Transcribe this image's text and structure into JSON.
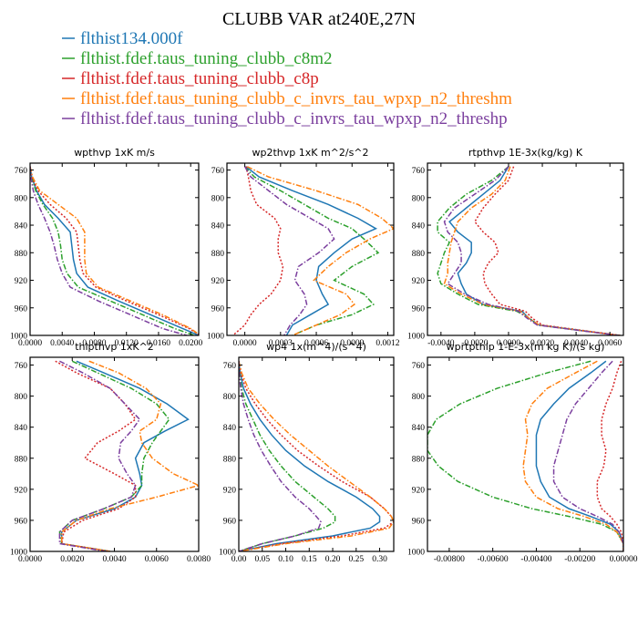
{
  "figure": {
    "title": "CLUBB VAR at240E,27N"
  },
  "legend": [
    {
      "name": "flthist134.000f",
      "color": "#1f77b4",
      "dash": "solid"
    },
    {
      "name": "flthist.fdef.taus_tuning_clubb_c8m2",
      "color": "#2ca02c",
      "dash": "dashdot"
    },
    {
      "name": "flthist.fdef.taus_tuning_clubb_c8p",
      "color": "#d62728",
      "dash": "dot"
    },
    {
      "name": "flthist.fdef.taus_tuning_clubb_c_invrs_tau_wpxp_n2_threshm",
      "color": "#ff7f0e",
      "dash": "dashdot"
    },
    {
      "name": "flthist.fdef.taus_tuning_clubb_c_invrs_tau_wpxp_n2_threshp",
      "color": "#7b3f9e",
      "dash": "dashdot"
    }
  ],
  "colors": {
    "flthist134.000f": "#1f77b4",
    "c8m2": "#2ca02c",
    "c8p": "#d62728",
    "threshm": "#ff7f0e",
    "threshp": "#7b3f9e"
  },
  "chart_data": [
    {
      "type": "line",
      "title": "wpthvp  1xK m/s",
      "xlim": [
        0,
        0.021
      ],
      "ylim": [
        1000,
        750
      ],
      "xticks": [
        0,
        0.004,
        0.008,
        0.012,
        0.016,
        0.02
      ],
      "xticklabels": [
        "0.0000",
        "0.0040",
        "0.0080",
        "0.0120",
        "0.0160",
        "0.0200"
      ],
      "yticks": [
        760,
        800,
        840,
        880,
        920,
        960,
        1000
      ],
      "y": [
        755,
        770,
        790,
        810,
        830,
        850,
        870,
        890,
        910,
        930,
        950,
        970,
        990,
        1000
      ],
      "series": [
        {
          "name": "flthist134.000f",
          "values": [
            0.0,
            0.0002,
            0.0008,
            0.0018,
            0.0035,
            0.005,
            0.0052,
            0.0054,
            0.0058,
            0.0072,
            0.011,
            0.015,
            0.019,
            0.021
          ]
        },
        {
          "name": "flthist.fdef.taus_tuning_clubb_c8m2",
          "values": [
            0.0,
            0.0002,
            0.0007,
            0.0016,
            0.0028,
            0.0035,
            0.0038,
            0.004,
            0.0046,
            0.006,
            0.01,
            0.014,
            0.018,
            0.0205
          ]
        },
        {
          "name": "flthist.fdef.taus_tuning_clubb_c8p",
          "values": [
            0.0,
            0.0002,
            0.001,
            0.0025,
            0.0045,
            0.0058,
            0.006,
            0.0062,
            0.0066,
            0.0082,
            0.012,
            0.016,
            0.0198,
            0.0212
          ]
        },
        {
          "name": "flthist.fdef.taus_tuning_clubb_c_invrs_tau_wpxp_n2_threshm",
          "values": [
            0.0,
            0.0003,
            0.0012,
            0.0035,
            0.0058,
            0.0068,
            0.0068,
            0.0068,
            0.007,
            0.0085,
            0.0125,
            0.0165,
            0.02,
            0.0212
          ]
        },
        {
          "name": "flthist.fdef.taus_tuning_clubb_c_invrs_tau_wpxp_n2_threshp",
          "values": [
            0.0,
            0.0001,
            0.0004,
            0.001,
            0.0018,
            0.0025,
            0.003,
            0.0034,
            0.004,
            0.005,
            0.0085,
            0.0125,
            0.0165,
            0.0195
          ]
        }
      ]
    },
    {
      "type": "line",
      "title": "wp2thvp  1xK m^2/s^2",
      "xlim": [
        -0.00015,
        0.00125
      ],
      "ylim": [
        1000,
        750
      ],
      "xticks": [
        0,
        0.0003,
        0.0006,
        0.0009,
        0.0012
      ],
      "xticklabels": [
        "0.0000",
        "0.0003",
        "0.0006",
        "0.0009",
        "0.0012"
      ],
      "yticks": [
        760,
        800,
        840,
        880,
        920,
        960,
        1000
      ],
      "y": [
        755,
        770,
        790,
        810,
        830,
        845,
        860,
        880,
        900,
        920,
        940,
        955,
        970,
        985,
        1000
      ],
      "series": [
        {
          "name": "flthist134.000f",
          "values": [
            1e-05,
            0.00012,
            0.0004,
            0.0007,
            0.00095,
            0.0011,
            0.0009,
            0.00075,
            0.00062,
            0.0006,
            0.00065,
            0.0007,
            0.00055,
            0.0004,
            0.00035
          ]
        },
        {
          "name": "flthist.fdef.taus_tuning_clubb_c8m2",
          "values": [
            0.0,
            8e-05,
            0.0003,
            0.0005,
            0.0007,
            0.0009,
            0.001,
            0.00112,
            0.0009,
            0.00075,
            0.001,
            0.00108,
            0.0009,
            0.0006,
            0.0004
          ]
        },
        {
          "name": "flthist.fdef.taus_tuning_clubb_c8p",
          "values": [
            1e-05,
            3e-05,
            5e-05,
            0.0001,
            0.00025,
            0.0003,
            0.00028,
            0.00028,
            0.00032,
            0.0003,
            0.00022,
            0.00012,
            5e-05,
            0.0,
            -0.0001
          ]
        },
        {
          "name": "flthist.fdef.taus_tuning_clubb_c_invrs_tau_wpxp_n2_threshm",
          "values": [
            2e-05,
            0.0002,
            0.0006,
            0.00095,
            0.00115,
            0.00125,
            0.00105,
            0.00085,
            0.0007,
            0.00058,
            0.00085,
            0.00092,
            0.0008,
            0.0006,
            0.0004
          ]
        },
        {
          "name": "flthist.fdef.taus_tuning_clubb_c_invrs_tau_wpxp_n2_threshp",
          "values": [
            0.0,
            5e-05,
            0.0002,
            0.00035,
            0.00055,
            0.0007,
            0.00075,
            0.00062,
            0.00045,
            0.00042,
            0.0005,
            0.00052,
            0.00046,
            0.00038,
            0.00033
          ]
        }
      ]
    },
    {
      "type": "line",
      "title": "rtpthvp  1E-3x(kg/kg) K",
      "xlim": [
        -0.0048,
        0.0068
      ],
      "ylim": [
        1000,
        750
      ],
      "xticks": [
        -0.004,
        -0.002,
        0,
        0.002,
        0.004,
        0.006
      ],
      "xticklabels": [
        "-0.0040",
        "-0.0020",
        "0.0000",
        "0.0020",
        "0.0040",
        "0.0060"
      ],
      "yticks": [
        760,
        800,
        840,
        880,
        920,
        960,
        1000
      ],
      "y": [
        755,
        775,
        795,
        815,
        835,
        850,
        865,
        880,
        895,
        910,
        925,
        940,
        955,
        965,
        975,
        985,
        1000
      ],
      "series": [
        {
          "name": "flthist134.000f",
          "values": [
            0.0,
            -0.0005,
            -0.0015,
            -0.0025,
            -0.0035,
            -0.003,
            -0.0022,
            -0.0022,
            -0.0025,
            -0.003,
            -0.0028,
            -0.0025,
            -0.0015,
            0.0008,
            0.0012,
            0.0018,
            0.0065
          ]
        },
        {
          "name": "flthist.fdef.taus_tuning_clubb_c8m2",
          "values": [
            0.0,
            -0.001,
            -0.0025,
            -0.0035,
            -0.0042,
            -0.0042,
            -0.0035,
            -0.0038,
            -0.004,
            -0.0042,
            -0.004,
            -0.003,
            -0.0018,
            0.0005,
            0.0012,
            0.0018,
            0.0066
          ]
        },
        {
          "name": "flthist.fdef.taus_tuning_clubb_c8p",
          "values": [
            0.0003,
            0.0,
            -0.0008,
            -0.0015,
            -0.002,
            -0.0015,
            -0.0008,
            -0.0006,
            -0.0012,
            -0.0015,
            -0.0014,
            -0.001,
            -0.0005,
            0.001,
            0.0014,
            0.002,
            0.0066
          ]
        },
        {
          "name": "flthist.fdef.taus_tuning_clubb_c_invrs_tau_wpxp_n2_threshm",
          "values": [
            0.0001,
            -0.0002,
            -0.001,
            -0.0022,
            -0.003,
            -0.0032,
            -0.0034,
            -0.0035,
            -0.0036,
            -0.0036,
            -0.0038,
            -0.0028,
            -0.0015,
            0.0007,
            0.0012,
            0.0018,
            0.0065
          ]
        },
        {
          "name": "flthist.fdef.taus_tuning_clubb_c_invrs_tau_wpxp_n2_threshp",
          "values": [
            0.0,
            -0.0008,
            -0.002,
            -0.0032,
            -0.0038,
            -0.0036,
            -0.003,
            -0.0028,
            -0.0028,
            -0.0032,
            -0.0036,
            -0.0026,
            -0.0012,
            0.0006,
            0.0011,
            0.0017,
            0.0065
          ]
        }
      ]
    },
    {
      "type": "line",
      "title": "thlpthvp  1xK^2",
      "xlim": [
        0,
        0.008
      ],
      "ylim": [
        1000,
        750
      ],
      "xticks": [
        0,
        0.002,
        0.004,
        0.006,
        0.008
      ],
      "xticklabels": [
        "0.0000",
        "0.0020",
        "0.0040",
        "0.0060",
        "0.0080"
      ],
      "yticks": [
        760,
        800,
        840,
        880,
        920,
        960,
        1000
      ],
      "y": [
        755,
        770,
        790,
        810,
        830,
        845,
        860,
        880,
        900,
        915,
        930,
        945,
        960,
        975,
        990,
        1000
      ],
      "series": [
        {
          "name": "flthist134.000f",
          "values": [
            0.0022,
            0.0035,
            0.0052,
            0.0065,
            0.0075,
            0.0064,
            0.0054,
            0.005,
            0.0052,
            0.0053,
            0.005,
            0.004,
            0.0022,
            0.0015,
            0.0015,
            0.0038
          ]
        },
        {
          "name": "flthist.fdef.taus_tuning_clubb_c8m2",
          "values": [
            0.002,
            0.0032,
            0.0048,
            0.006,
            0.0066,
            0.0062,
            0.0058,
            0.0054,
            0.0053,
            0.0053,
            0.0048,
            0.0035,
            0.002,
            0.0014,
            0.0015,
            0.0038
          ]
        },
        {
          "name": "flthist.fdef.taus_tuning_clubb_c8p",
          "values": [
            0.0012,
            0.0022,
            0.0038,
            0.0045,
            0.005,
            0.0042,
            0.0032,
            0.0026,
            0.004,
            0.005,
            0.005,
            0.0042,
            0.0025,
            0.0016,
            0.0015,
            0.0038
          ]
        },
        {
          "name": "flthist.fdef.taus_tuning_clubb_c_invrs_tau_wpxp_n2_threshm",
          "values": [
            0.0028,
            0.0042,
            0.0055,
            0.0062,
            0.006,
            0.0052,
            0.0053,
            0.0058,
            0.0068,
            0.008,
            0.006,
            0.0038,
            0.0022,
            0.0015,
            0.0015,
            0.0038
          ]
        },
        {
          "name": "flthist.fdef.taus_tuning_clubb_c_invrs_tau_wpxp_n2_threshp",
          "values": [
            0.0014,
            0.0025,
            0.0038,
            0.0045,
            0.0052,
            0.0048,
            0.0043,
            0.0042,
            0.0046,
            0.005,
            0.0048,
            0.0035,
            0.002,
            0.0014,
            0.0014,
            0.0036
          ]
        }
      ]
    },
    {
      "type": "line",
      "title": "wp4  1x(m^4)/(s^4)",
      "xlim": [
        0,
        0.33
      ],
      "ylim": [
        1000,
        750
      ],
      "xticks": [
        0,
        0.05,
        0.1,
        0.15,
        0.2,
        0.25,
        0.3
      ],
      "xticklabels": [
        "0.00",
        "0.05",
        "0.10",
        "0.15",
        "0.20",
        "0.25",
        "0.30"
      ],
      "yticks": [
        760,
        800,
        840,
        880,
        920,
        960,
        1000
      ],
      "y": [
        755,
        770,
        790,
        810,
        830,
        850,
        870,
        890,
        910,
        930,
        945,
        955,
        962,
        970,
        980,
        990,
        1000
      ],
      "series": [
        {
          "name": "flthist134.000f",
          "values": [
            0.0,
            0.003,
            0.01,
            0.025,
            0.045,
            0.07,
            0.1,
            0.14,
            0.19,
            0.25,
            0.285,
            0.3,
            0.3,
            0.28,
            0.2,
            0.08,
            0.0
          ]
        },
        {
          "name": "flthist.fdef.taus_tuning_clubb_c8m2",
          "values": [
            0.0,
            0.002,
            0.006,
            0.015,
            0.03,
            0.045,
            0.065,
            0.09,
            0.12,
            0.16,
            0.19,
            0.205,
            0.205,
            0.18,
            0.12,
            0.05,
            0.0
          ]
        },
        {
          "name": "flthist.fdef.taus_tuning_clubb_c8p",
          "values": [
            0.0,
            0.004,
            0.015,
            0.035,
            0.06,
            0.09,
            0.125,
            0.17,
            0.22,
            0.28,
            0.31,
            0.325,
            0.33,
            0.31,
            0.22,
            0.09,
            0.0
          ]
        },
        {
          "name": "flthist.fdef.taus_tuning_clubb_c_invrs_tau_wpxp_n2_threshm",
          "values": [
            0.0,
            0.006,
            0.02,
            0.045,
            0.075,
            0.11,
            0.15,
            0.19,
            0.235,
            0.28,
            0.31,
            0.325,
            0.33,
            0.32,
            0.24,
            0.1,
            0.0
          ]
        },
        {
          "name": "flthist.fdef.taus_tuning_clubb_c_invrs_tau_wpxp_n2_threshp",
          "values": [
            0.0,
            0.001,
            0.004,
            0.01,
            0.02,
            0.032,
            0.048,
            0.068,
            0.09,
            0.12,
            0.15,
            0.165,
            0.175,
            0.17,
            0.12,
            0.05,
            0.0
          ]
        }
      ]
    },
    {
      "type": "line",
      "title": "wprtpthlp  1-E-3x(m kg K)/(s kg)",
      "xlim": [
        -0.009,
        0.0
      ],
      "ylim": [
        1000,
        750
      ],
      "xticks": [
        -0.008,
        -0.006,
        -0.004,
        -0.002,
        0.0
      ],
      "xticklabels": [
        "-0.00800",
        "-0.00600",
        "-0.00400",
        "-0.00200",
        "0.00000"
      ],
      "yticks": [
        760,
        800,
        840,
        880,
        920,
        960,
        1000
      ],
      "y": [
        755,
        770,
        790,
        810,
        830,
        850,
        870,
        890,
        910,
        930,
        945,
        955,
        965,
        975,
        990,
        1000
      ],
      "series": [
        {
          "name": "flthist134.000f",
          "values": [
            -0.0008,
            -0.0015,
            -0.0025,
            -0.0032,
            -0.0038,
            -0.004,
            -0.004,
            -0.004,
            -0.0038,
            -0.0034,
            -0.0025,
            -0.0015,
            -0.0006,
            -0.0002,
            0.0,
            0.0
          ]
        },
        {
          "name": "flthist.fdef.taus_tuning_clubb_c8m2",
          "values": [
            -0.0015,
            -0.0035,
            -0.0058,
            -0.0075,
            -0.0086,
            -0.009,
            -0.009,
            -0.0085,
            -0.0076,
            -0.006,
            -0.0042,
            -0.0025,
            -0.001,
            -0.0003,
            0.0,
            0.0
          ]
        },
        {
          "name": "flthist.fdef.taus_tuning_clubb_c8p",
          "values": [
            -0.0001,
            -0.0003,
            -0.0005,
            -0.0008,
            -0.001,
            -0.001,
            -0.0008,
            -0.0009,
            -0.0012,
            -0.0012,
            -0.001,
            -0.0006,
            -0.0003,
            -0.0001,
            0.0,
            0.0
          ]
        },
        {
          "name": "flthist.fdef.taus_tuning_clubb_c_invrs_tau_wpxp_n2_threshm",
          "values": [
            -0.0012,
            -0.0022,
            -0.0035,
            -0.0042,
            -0.0045,
            -0.0044,
            -0.0045,
            -0.0046,
            -0.0045,
            -0.004,
            -0.003,
            -0.0018,
            -0.0008,
            -0.0003,
            0.0,
            0.0
          ]
        },
        {
          "name": "flthist.fdef.taus_tuning_clubb_c_invrs_tau_wpxp_n2_threshp",
          "values": [
            -0.0005,
            -0.001,
            -0.0016,
            -0.0022,
            -0.0026,
            -0.0028,
            -0.003,
            -0.0032,
            -0.0032,
            -0.0028,
            -0.002,
            -0.0012,
            -0.0005,
            -0.0002,
            0.0,
            0.0
          ]
        }
      ]
    }
  ]
}
